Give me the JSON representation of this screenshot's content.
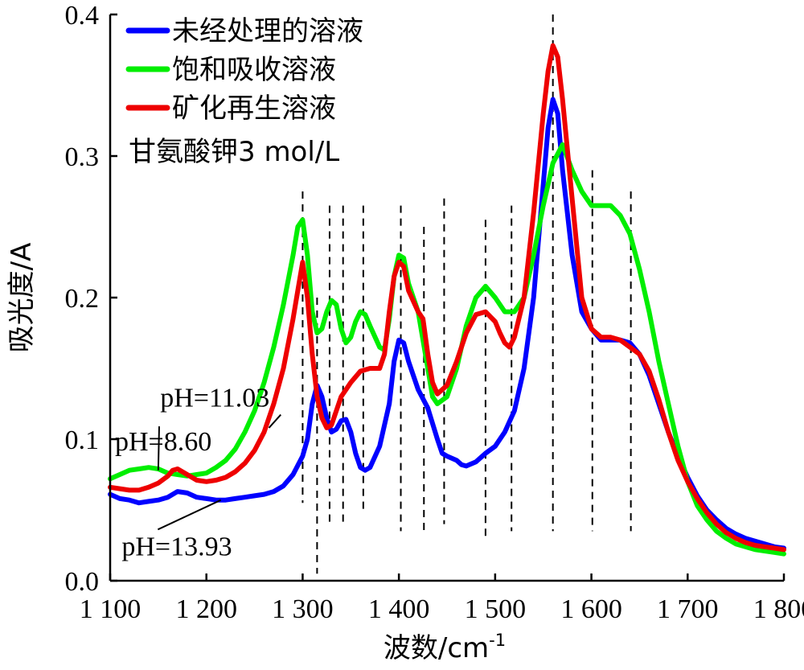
{
  "chart_data": {
    "type": "line",
    "xlabel": "波数/cm",
    "xlabel_sup": "-1",
    "ylabel": "吸光度/A",
    "xlim": [
      1100,
      1800
    ],
    "ylim": [
      0.0,
      0.4
    ],
    "x_ticks": [
      1100,
      1200,
      1300,
      1400,
      1500,
      1600,
      1700,
      1800
    ],
    "x_tick_labels": [
      "1 100",
      "1 200",
      "1 300",
      "1 400",
      "1 500",
      "1 600",
      "1 700",
      "1 800"
    ],
    "y_ticks": [
      0.0,
      0.1,
      0.2,
      0.3,
      0.4
    ],
    "y_tick_labels": [
      "0.0",
      "0.1",
      "0.2",
      "0.3",
      "0.4"
    ],
    "grid": false,
    "legend_position": "top-left",
    "legend_note": "甘氨酸钾3 mol/L",
    "series": [
      {
        "name": "未经处理的溶液",
        "color": "#0000ff",
        "points": [
          [
            1100,
            0.061
          ],
          [
            1110,
            0.058
          ],
          [
            1120,
            0.057
          ],
          [
            1130,
            0.055
          ],
          [
            1140,
            0.056
          ],
          [
            1150,
            0.057
          ],
          [
            1160,
            0.059
          ],
          [
            1170,
            0.063
          ],
          [
            1180,
            0.062
          ],
          [
            1190,
            0.059
          ],
          [
            1200,
            0.058
          ],
          [
            1210,
            0.057
          ],
          [
            1220,
            0.057
          ],
          [
            1230,
            0.058
          ],
          [
            1240,
            0.059
          ],
          [
            1250,
            0.06
          ],
          [
            1260,
            0.061
          ],
          [
            1270,
            0.063
          ],
          [
            1280,
            0.067
          ],
          [
            1290,
            0.075
          ],
          [
            1300,
            0.088
          ],
          [
            1305,
            0.1
          ],
          [
            1310,
            0.125
          ],
          [
            1315,
            0.138
          ],
          [
            1320,
            0.13
          ],
          [
            1325,
            0.115
          ],
          [
            1330,
            0.105
          ],
          [
            1335,
            0.107
          ],
          [
            1340,
            0.113
          ],
          [
            1345,
            0.114
          ],
          [
            1350,
            0.105
          ],
          [
            1355,
            0.09
          ],
          [
            1360,
            0.08
          ],
          [
            1365,
            0.078
          ],
          [
            1370,
            0.08
          ],
          [
            1380,
            0.095
          ],
          [
            1390,
            0.125
          ],
          [
            1395,
            0.155
          ],
          [
            1400,
            0.17
          ],
          [
            1405,
            0.168
          ],
          [
            1410,
            0.155
          ],
          [
            1420,
            0.135
          ],
          [
            1430,
            0.122
          ],
          [
            1440,
            0.1
          ],
          [
            1445,
            0.09
          ],
          [
            1450,
            0.088
          ],
          [
            1460,
            0.085
          ],
          [
            1465,
            0.082
          ],
          [
            1470,
            0.081
          ],
          [
            1480,
            0.084
          ],
          [
            1490,
            0.09
          ],
          [
            1500,
            0.095
          ],
          [
            1510,
            0.105
          ],
          [
            1520,
            0.12
          ],
          [
            1530,
            0.15
          ],
          [
            1540,
            0.2
          ],
          [
            1550,
            0.28
          ],
          [
            1555,
            0.32
          ],
          [
            1560,
            0.34
          ],
          [
            1565,
            0.33
          ],
          [
            1570,
            0.29
          ],
          [
            1580,
            0.23
          ],
          [
            1590,
            0.19
          ],
          [
            1600,
            0.178
          ],
          [
            1610,
            0.17
          ],
          [
            1620,
            0.17
          ],
          [
            1630,
            0.17
          ],
          [
            1640,
            0.168
          ],
          [
            1650,
            0.16
          ],
          [
            1660,
            0.145
          ],
          [
            1670,
            0.125
          ],
          [
            1680,
            0.105
          ],
          [
            1690,
            0.088
          ],
          [
            1700,
            0.073
          ],
          [
            1710,
            0.06
          ],
          [
            1720,
            0.05
          ],
          [
            1730,
            0.043
          ],
          [
            1740,
            0.037
          ],
          [
            1750,
            0.033
          ],
          [
            1760,
            0.03
          ],
          [
            1770,
            0.028
          ],
          [
            1780,
            0.026
          ],
          [
            1790,
            0.024
          ],
          [
            1800,
            0.023
          ]
        ]
      },
      {
        "name": "饱和吸收溶液",
        "color": "#00ee00",
        "points": [
          [
            1100,
            0.072
          ],
          [
            1110,
            0.075
          ],
          [
            1120,
            0.078
          ],
          [
            1130,
            0.079
          ],
          [
            1140,
            0.08
          ],
          [
            1150,
            0.079
          ],
          [
            1160,
            0.076
          ],
          [
            1170,
            0.075
          ],
          [
            1180,
            0.074
          ],
          [
            1190,
            0.075
          ],
          [
            1200,
            0.076
          ],
          [
            1210,
            0.08
          ],
          [
            1220,
            0.085
          ],
          [
            1230,
            0.093
          ],
          [
            1240,
            0.105
          ],
          [
            1250,
            0.12
          ],
          [
            1260,
            0.14
          ],
          [
            1270,
            0.165
          ],
          [
            1280,
            0.195
          ],
          [
            1290,
            0.23
          ],
          [
            1295,
            0.25
          ],
          [
            1300,
            0.255
          ],
          [
            1305,
            0.23
          ],
          [
            1310,
            0.19
          ],
          [
            1315,
            0.175
          ],
          [
            1320,
            0.178
          ],
          [
            1325,
            0.19
          ],
          [
            1330,
            0.198
          ],
          [
            1335,
            0.195
          ],
          [
            1340,
            0.178
          ],
          [
            1345,
            0.168
          ],
          [
            1350,
            0.172
          ],
          [
            1355,
            0.183
          ],
          [
            1360,
            0.19
          ],
          [
            1365,
            0.188
          ],
          [
            1370,
            0.18
          ],
          [
            1380,
            0.165
          ],
          [
            1385,
            0.163
          ],
          [
            1390,
            0.185
          ],
          [
            1395,
            0.215
          ],
          [
            1400,
            0.23
          ],
          [
            1405,
            0.228
          ],
          [
            1410,
            0.21
          ],
          [
            1420,
            0.19
          ],
          [
            1430,
            0.15
          ],
          [
            1435,
            0.13
          ],
          [
            1440,
            0.125
          ],
          [
            1450,
            0.13
          ],
          [
            1460,
            0.15
          ],
          [
            1470,
            0.18
          ],
          [
            1480,
            0.2
          ],
          [
            1490,
            0.208
          ],
          [
            1500,
            0.2
          ],
          [
            1510,
            0.19
          ],
          [
            1520,
            0.19
          ],
          [
            1530,
            0.2
          ],
          [
            1540,
            0.23
          ],
          [
            1550,
            0.265
          ],
          [
            1560,
            0.295
          ],
          [
            1570,
            0.308
          ],
          [
            1580,
            0.29
          ],
          [
            1590,
            0.275
          ],
          [
            1600,
            0.265
          ],
          [
            1610,
            0.265
          ],
          [
            1620,
            0.265
          ],
          [
            1630,
            0.258
          ],
          [
            1640,
            0.245
          ],
          [
            1650,
            0.22
          ],
          [
            1660,
            0.19
          ],
          [
            1670,
            0.155
          ],
          [
            1680,
            0.125
          ],
          [
            1690,
            0.095
          ],
          [
            1700,
            0.07
          ],
          [
            1710,
            0.053
          ],
          [
            1720,
            0.043
          ],
          [
            1730,
            0.035
          ],
          [
            1740,
            0.03
          ],
          [
            1750,
            0.026
          ],
          [
            1760,
            0.024
          ],
          [
            1770,
            0.022
          ],
          [
            1780,
            0.021
          ],
          [
            1790,
            0.02
          ],
          [
            1800,
            0.019
          ]
        ]
      },
      {
        "name": "矿化再生溶液",
        "color": "#ee0000",
        "points": [
          [
            1100,
            0.066
          ],
          [
            1110,
            0.065
          ],
          [
            1120,
            0.064
          ],
          [
            1130,
            0.064
          ],
          [
            1140,
            0.066
          ],
          [
            1150,
            0.069
          ],
          [
            1160,
            0.074
          ],
          [
            1165,
            0.078
          ],
          [
            1170,
            0.079
          ],
          [
            1180,
            0.075
          ],
          [
            1190,
            0.071
          ],
          [
            1200,
            0.07
          ],
          [
            1210,
            0.071
          ],
          [
            1220,
            0.073
          ],
          [
            1230,
            0.077
          ],
          [
            1240,
            0.083
          ],
          [
            1250,
            0.092
          ],
          [
            1260,
            0.105
          ],
          [
            1270,
            0.125
          ],
          [
            1280,
            0.15
          ],
          [
            1290,
            0.185
          ],
          [
            1295,
            0.205
          ],
          [
            1300,
            0.225
          ],
          [
            1305,
            0.2
          ],
          [
            1310,
            0.16
          ],
          [
            1315,
            0.13
          ],
          [
            1320,
            0.115
          ],
          [
            1325,
            0.108
          ],
          [
            1330,
            0.11
          ],
          [
            1335,
            0.12
          ],
          [
            1340,
            0.13
          ],
          [
            1345,
            0.135
          ],
          [
            1350,
            0.14
          ],
          [
            1360,
            0.148
          ],
          [
            1370,
            0.15
          ],
          [
            1380,
            0.15
          ],
          [
            1385,
            0.16
          ],
          [
            1390,
            0.19
          ],
          [
            1395,
            0.215
          ],
          [
            1400,
            0.225
          ],
          [
            1405,
            0.222
          ],
          [
            1410,
            0.205
          ],
          [
            1420,
            0.19
          ],
          [
            1425,
            0.185
          ],
          [
            1430,
            0.16
          ],
          [
            1435,
            0.14
          ],
          [
            1440,
            0.132
          ],
          [
            1450,
            0.138
          ],
          [
            1460,
            0.155
          ],
          [
            1470,
            0.175
          ],
          [
            1480,
            0.188
          ],
          [
            1490,
            0.19
          ],
          [
            1500,
            0.183
          ],
          [
            1505,
            0.175
          ],
          [
            1510,
            0.168
          ],
          [
            1515,
            0.165
          ],
          [
            1520,
            0.172
          ],
          [
            1530,
            0.2
          ],
          [
            1540,
            0.26
          ],
          [
            1550,
            0.33
          ],
          [
            1555,
            0.36
          ],
          [
            1560,
            0.378
          ],
          [
            1565,
            0.37
          ],
          [
            1570,
            0.34
          ],
          [
            1580,
            0.27
          ],
          [
            1590,
            0.2
          ],
          [
            1600,
            0.178
          ],
          [
            1610,
            0.172
          ],
          [
            1620,
            0.172
          ],
          [
            1630,
            0.17
          ],
          [
            1640,
            0.165
          ],
          [
            1650,
            0.16
          ],
          [
            1660,
            0.148
          ],
          [
            1670,
            0.128
          ],
          [
            1680,
            0.105
          ],
          [
            1690,
            0.085
          ],
          [
            1700,
            0.07
          ],
          [
            1710,
            0.058
          ],
          [
            1720,
            0.048
          ],
          [
            1730,
            0.04
          ],
          [
            1740,
            0.034
          ],
          [
            1750,
            0.03
          ],
          [
            1760,
            0.027
          ],
          [
            1770,
            0.025
          ],
          [
            1780,
            0.024
          ],
          [
            1790,
            0.023
          ],
          [
            1800,
            0.022
          ]
        ]
      }
    ],
    "reference_lines": [
      {
        "x": 1300,
        "y_top": 0.275,
        "y_bottom": 0.055
      },
      {
        "x": 1315,
        "y_top": 0.2,
        "y_bottom": 0.005
      },
      {
        "x": 1328,
        "y_top": 0.265,
        "y_bottom": 0.04
      },
      {
        "x": 1342,
        "y_top": 0.265,
        "y_bottom": 0.04
      },
      {
        "x": 1363,
        "y_top": 0.265,
        "y_bottom": 0.05
      },
      {
        "x": 1402,
        "y_top": 0.265,
        "y_bottom": 0.035
      },
      {
        "x": 1426,
        "y_top": 0.25,
        "y_bottom": 0.035
      },
      {
        "x": 1447,
        "y_top": 0.27,
        "y_bottom": 0.04
      },
      {
        "x": 1490,
        "y_top": 0.255,
        "y_bottom": 0.03
      },
      {
        "x": 1517,
        "y_top": 0.265,
        "y_bottom": 0.035
      },
      {
        "x": 1560,
        "y_top": 0.4,
        "y_bottom": 0.035
      },
      {
        "x": 1601,
        "y_top": 0.29,
        "y_bottom": 0.035
      },
      {
        "x": 1641,
        "y_top": 0.275,
        "y_bottom": 0.035
      }
    ],
    "annotations": [
      {
        "text": "pH=11.03",
        "x": 1152,
        "y": 0.123,
        "arrow_to": [
          1265,
          0.108
        ]
      },
      {
        "text": "pH=8.60",
        "x": 1105,
        "y": 0.092,
        "arrow_to": [
          1150,
          0.078
        ]
      },
      {
        "text": "pH=13.93",
        "x": 1112,
        "y": 0.018,
        "arrow_to": [
          1215,
          0.057
        ]
      }
    ]
  }
}
